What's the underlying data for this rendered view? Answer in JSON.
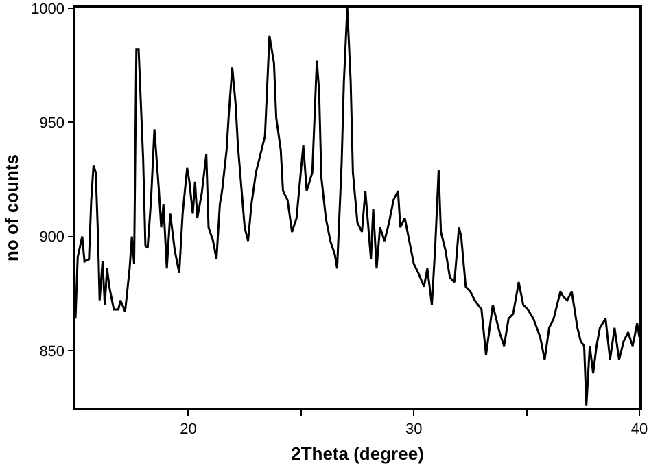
{
  "chart_data": {
    "type": "line",
    "xlabel": "2Theta (degree)",
    "ylabel": "no of counts",
    "xlim": [
      15,
      40
    ],
    "ylim": [
      825,
      1000
    ],
    "xticks": [
      20,
      {
        "value": 25,
        "label": null
      },
      30,
      {
        "value": 35,
        "label": null
      },
      40
    ],
    "yticks": [
      850,
      900,
      950,
      1000
    ],
    "grid": false,
    "marker": "none",
    "line_style": "solid",
    "x": [
      15,
      15.1,
      15.3,
      15.4,
      15.6,
      15.7,
      15.8,
      15.9,
      16.0,
      16.07,
      16.2,
      16.3,
      16.4,
      16.5,
      16.7,
      16.9,
      17.0,
      17.2,
      17.4,
      17.5,
      17.6,
      17.7,
      17.8,
      17.9,
      18.0,
      18.1,
      18.2,
      18.35,
      18.5,
      18.7,
      18.8,
      18.9,
      19.05,
      19.2,
      19.4,
      19.6,
      19.75,
      19.95,
      20.05,
      20.2,
      20.3,
      20.4,
      20.6,
      20.8,
      20.9,
      21.1,
      21.25,
      21.4,
      21.5,
      21.7,
      21.8,
      21.95,
      22.1,
      22.2,
      22.4,
      22.5,
      22.65,
      22.8,
      23.0,
      23.2,
      23.4,
      23.6,
      23.8,
      23.9,
      24.1,
      24.2,
      24.4,
      24.6,
      24.8,
      24.95,
      25.1,
      25.25,
      25.5,
      25.7,
      25.8,
      25.9,
      26.1,
      26.3,
      26.5,
      26.6,
      26.8,
      26.9,
      27.05,
      27.2,
      27.3,
      27.5,
      27.7,
      27.85,
      27.95,
      28.1,
      28.2,
      28.35,
      28.5,
      28.7,
      28.9,
      29.1,
      29.3,
      29.4,
      29.6,
      29.8,
      30.0,
      30.2,
      30.45,
      30.6,
      30.8,
      30.95,
      31.1,
      31.2,
      31.4,
      31.6,
      31.8,
      32.0,
      32.1,
      32.3,
      32.5,
      32.7,
      33.0,
      33.2,
      33.5,
      33.8,
      34.0,
      34.2,
      34.4,
      34.65,
      34.85,
      35.05,
      35.3,
      35.6,
      35.8,
      36.0,
      36.2,
      36.5,
      36.6,
      36.8,
      37.0,
      37.25,
      37.4,
      37.55,
      37.65,
      37.8,
      37.95,
      38.1,
      38.25,
      38.5,
      38.7,
      38.9,
      39.1,
      39.3,
      39.5,
      39.7,
      39.9,
      40
    ],
    "series": [
      {
        "color": "#000000",
        "values": [
          864,
          891,
          900,
          889,
          890,
          916,
          931,
          928,
          900,
          872,
          889,
          870,
          886,
          878,
          868,
          868,
          872,
          867,
          886,
          900,
          888,
          982,
          982,
          958,
          934,
          896,
          895,
          916,
          947,
          920,
          904,
          914,
          886,
          910,
          894,
          884,
          910,
          930,
          924,
          910,
          924,
          908,
          919,
          936,
          904,
          898,
          890,
          914,
          920,
          938,
          954,
          974,
          958,
          940,
          916,
          904,
          898,
          914,
          928,
          936,
          944,
          988,
          976,
          952,
          938,
          920,
          916,
          902,
          908,
          924,
          940,
          920,
          928,
          977,
          964,
          926,
          908,
          898,
          892,
          886,
          932,
          968,
          1000,
          968,
          928,
          906,
          902,
          920,
          908,
          890,
          912,
          886,
          904,
          898,
          906,
          916,
          920,
          904,
          908,
          898,
          888,
          884,
          878,
          886,
          870,
          896,
          929,
          902,
          894,
          882,
          880,
          904,
          900,
          878,
          876,
          872,
          868,
          848,
          870,
          858,
          852,
          864,
          866,
          880,
          870,
          868,
          864,
          856,
          846,
          860,
          864,
          876,
          874,
          872,
          876,
          860,
          854,
          852,
          826,
          852,
          840,
          852,
          860,
          864,
          846,
          860,
          846,
          854,
          858,
          852,
          862,
          856
        ]
      }
    ]
  }
}
